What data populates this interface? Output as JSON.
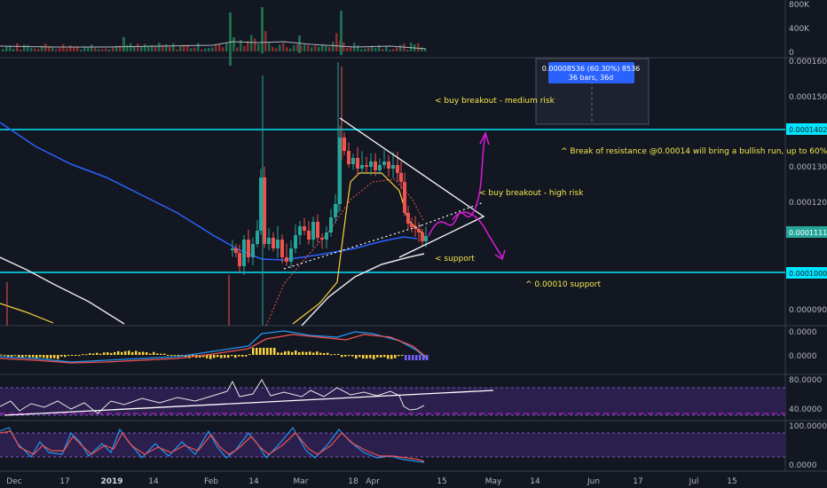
{
  "chart_data": {
    "type": "candlestick",
    "main": {
      "y_ticks": [
        "0.00016000",
        "0.00015000",
        "0.00013000",
        "0.00012000",
        "0.00009000"
      ],
      "resistance": {
        "value": 0.00014024,
        "label": "0.00014024"
      },
      "support": {
        "value": 0.00010004,
        "label": "0.00010004"
      },
      "current": {
        "value": 0.00011117,
        "label": "0.00011117"
      },
      "ylim": [
        8.45e-05,
        0.0001605
      ]
    },
    "volume": {
      "y_ticks": [
        "800K",
        "400K",
        "0"
      ]
    },
    "macd": {
      "y_ticks": [
        "0.0000",
        "0.0000"
      ]
    },
    "rsi": {
      "y_ticks": [
        "80.0000",
        "40.0000"
      ]
    },
    "stoch": {
      "y_ticks": [
        "100.0000",
        "0.0000"
      ]
    },
    "x_labels": [
      {
        "label": "Dec",
        "bold": false
      },
      {
        "label": "17",
        "bold": false
      },
      {
        "label": "2019",
        "bold": true
      },
      {
        "label": "14",
        "bold": false
      },
      {
        "label": "Feb",
        "bold": false
      },
      {
        "label": "14",
        "bold": false
      },
      {
        "label": "Mar",
        "bold": false
      },
      {
        "label": "18",
        "bold": false
      },
      {
        "label": "Apr",
        "bold": false
      },
      {
        "label": "15",
        "bold": false
      },
      {
        "label": "May",
        "bold": false
      },
      {
        "label": "14",
        "bold": false
      },
      {
        "label": "Jun",
        "bold": false
      },
      {
        "label": "17",
        "bold": false
      },
      {
        "label": "Jul",
        "bold": false
      },
      {
        "label": "15",
        "bold": false
      }
    ],
    "annotations": [
      "< buy breakout - medium risk",
      "^ Break of resistance @0.00014 will bring a bullish run, up to 60%.",
      "< buy breakout - high risk",
      "< support",
      "^ 0.00010 support"
    ],
    "measure_tooltip": {
      "line1": "0.00008536 (60.30%) 8536",
      "line2": "36 bars, 36d"
    }
  },
  "colors": {
    "background": "#131722",
    "up": "#26a69a",
    "down": "#ef5350",
    "level_line": "#00e5ff",
    "annotation": "#f5e94c",
    "arrows": "#d81bd8",
    "ma_blue": "#2962ff",
    "ma_yellow": "#f9d33c",
    "tooltip": "#2962ff",
    "osc_fill": "#2a1f4d"
  }
}
